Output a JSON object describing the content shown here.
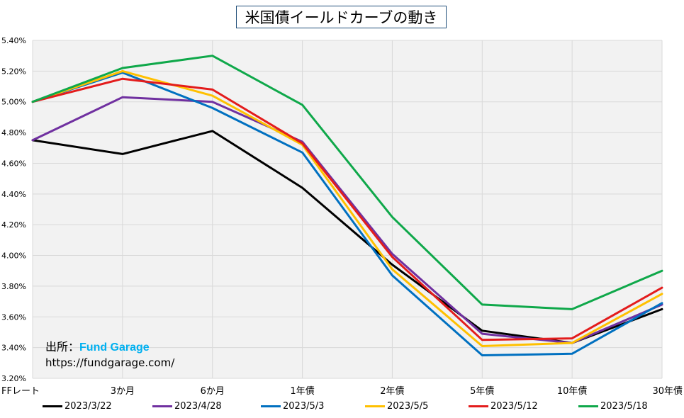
{
  "chart_data": {
    "type": "line",
    "title": "米国債イールドカーブの動き",
    "categories": [
      "FFレート",
      "3か月",
      "6か月",
      "1年債",
      "2年債",
      "5年債",
      "10年債",
      "30年債"
    ],
    "yticks": [
      "3.20%",
      "3.40%",
      "3.60%",
      "3.80%",
      "4.00%",
      "4.20%",
      "4.40%",
      "4.60%",
      "4.80%",
      "5.00%",
      "5.20%",
      "5.40%"
    ],
    "ylim": [
      3.2,
      5.4
    ],
    "grid": true,
    "legend_position": "bottom",
    "series": [
      {
        "name": "2023/3/22",
        "color": "#000000",
        "values": [
          4.75,
          4.66,
          4.81,
          4.44,
          3.94,
          3.51,
          3.43,
          3.65
        ]
      },
      {
        "name": "2023/4/28",
        "color": "#7030a0",
        "values": [
          4.75,
          5.03,
          5.0,
          4.74,
          4.01,
          3.49,
          3.43,
          3.68
        ]
      },
      {
        "name": "2023/5/3",
        "color": "#0070c0",
        "values": [
          5.0,
          5.19,
          4.96,
          4.67,
          3.87,
          3.35,
          3.36,
          3.69
        ]
      },
      {
        "name": "2023/5/5",
        "color": "#ffc000",
        "values": [
          5.0,
          5.2,
          5.04,
          4.72,
          3.91,
          3.41,
          3.43,
          3.75
        ]
      },
      {
        "name": "2023/5/12",
        "color": "#e31c1c",
        "values": [
          5.0,
          5.15,
          5.08,
          4.73,
          3.99,
          3.45,
          3.46,
          3.79
        ]
      },
      {
        "name": "2023/5/18",
        "color": "#0fa84a",
        "values": [
          5.0,
          5.22,
          5.3,
          4.98,
          4.25,
          3.68,
          3.65,
          3.9
        ]
      }
    ]
  },
  "source": {
    "label": "出所：",
    "name": "Fund Garage",
    "url": "https://fundgarage.com/"
  }
}
